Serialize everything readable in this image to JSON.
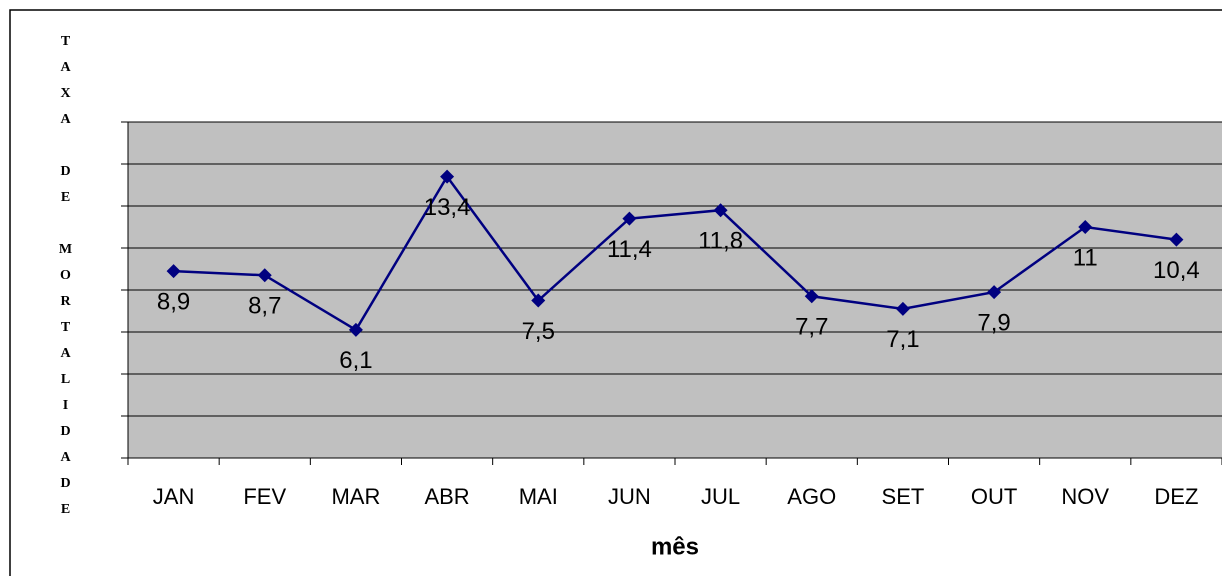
{
  "chart_data": {
    "type": "line",
    "x_label": "mês",
    "y_label": "TAXA DE MORTALIDADE",
    "categories": [
      "JAN",
      "FEV",
      "MAR",
      "ABR",
      "MAI",
      "JUN",
      "JUL",
      "AGO",
      "SET",
      "OUT",
      "NOV",
      "DEZ"
    ],
    "values": [
      8.9,
      8.7,
      6.1,
      13.4,
      7.5,
      11.4,
      11.8,
      7.7,
      7.1,
      7.9,
      11,
      10.4
    ],
    "value_labels": [
      "8,9",
      "8,7",
      "6,1",
      "13,4",
      "7,5",
      "11,4",
      "11,8",
      "7,7",
      "7,1",
      "7,9",
      "11",
      "10,4"
    ],
    "color": "#000080",
    "ylim": [
      0,
      16
    ],
    "yticks": [
      0,
      2,
      4,
      6,
      8,
      10,
      12,
      14,
      16
    ],
    "grid": true
  }
}
